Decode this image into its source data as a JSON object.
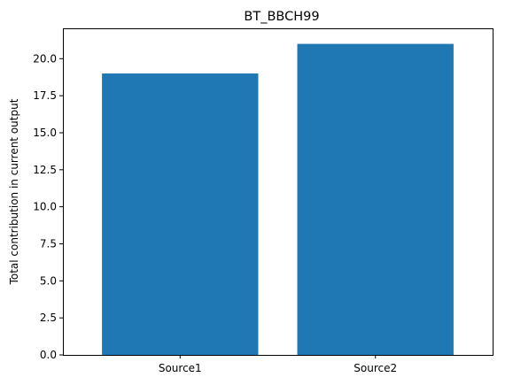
{
  "chart_data": {
    "type": "bar",
    "title": "BT_BBCH99",
    "xlabel": "",
    "ylabel": "Total contribution in current output",
    "categories": [
      "Source1",
      "Source2"
    ],
    "values": [
      19,
      21
    ],
    "ylim": [
      0,
      22.05
    ],
    "yticks": [
      0.0,
      2.5,
      5.0,
      7.5,
      10.0,
      12.5,
      15.0,
      17.5,
      20.0
    ],
    "ytick_labels": [
      "0.0",
      "2.5",
      "5.0",
      "7.5",
      "10.0",
      "12.5",
      "15.0",
      "17.5",
      "20.0"
    ],
    "grid": false,
    "bar_color": "#1f77b4"
  }
}
